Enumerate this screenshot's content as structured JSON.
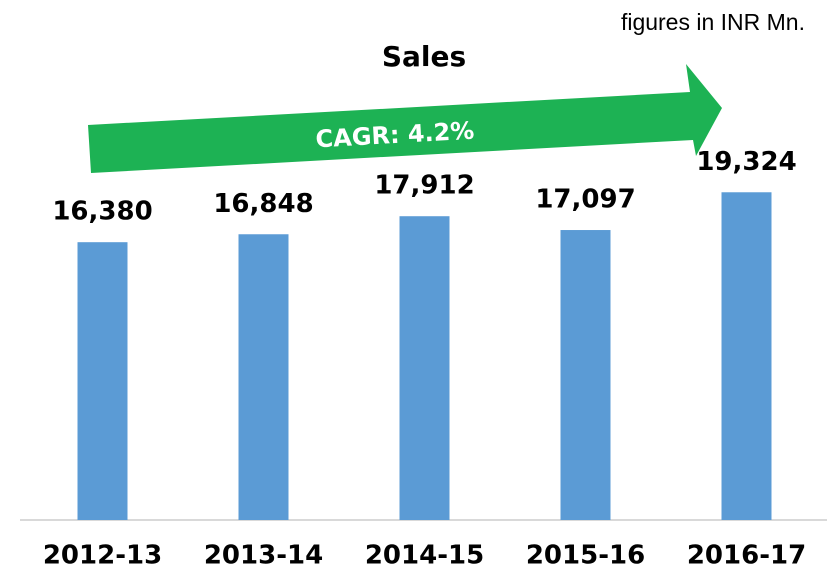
{
  "chart_data": {
    "type": "bar",
    "title": "Sales",
    "annotations": [
      "figures in INR Mn.",
      "CAGR: 4.2%"
    ],
    "categories": [
      "2012-13",
      "2013-14",
      "2014-15",
      "2015-16",
      "2016-17"
    ],
    "values": [
      16380,
      16848,
      17912,
      17097,
      19324
    ],
    "value_labels": [
      "16,380",
      "16,848",
      "17,912",
      "17,097",
      "19,324"
    ],
    "color": "#5b9bd5",
    "ylim": [
      0,
      25000
    ]
  }
}
